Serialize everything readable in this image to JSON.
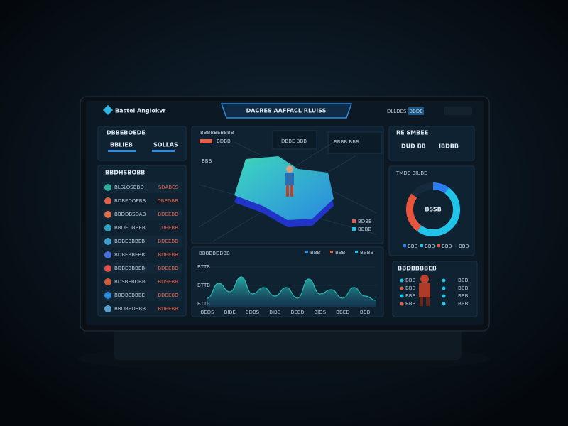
{
  "header": {
    "logo": "Bastel Anglokvr",
    "title": "DACRES AAFFACL RLUISS",
    "right": [
      "DLLDES",
      "BBDE"
    ]
  },
  "top_left": {
    "title": "DBBEBOEDE",
    "items": [
      "BBLIEB",
      "SOLLAS"
    ]
  },
  "list": {
    "title": "BBDHSBOBB",
    "rows": [
      [
        "BLSLOSBBD",
        "SDABES"
      ],
      [
        "BDBEDOEBB",
        "DBEDBB"
      ],
      [
        "BBDDBSDAB",
        "BDEEBB"
      ],
      [
        "BBDEDBBEB",
        "DEEBB"
      ],
      [
        "BDBEBBBEB",
        "BDEEBB"
      ],
      [
        "BDBEBBEBB",
        "BDEEBB"
      ],
      [
        "BDBEBBBEB",
        "BDEEBB"
      ],
      [
        "BDSBEBOBB",
        "BDSEBB"
      ],
      [
        "BBDBEBBBE",
        "BDEEBB"
      ],
      [
        "BBDBEDBBB",
        "BDEEBB"
      ]
    ]
  },
  "map_panel": {
    "title": "BBBBBEBBBB",
    "tags": [
      "BDBB",
      "BBB"
    ],
    "stats": [
      "DBBE BBB",
      "BBBB BBB"
    ],
    "legend": [
      "BDBB",
      "BBBB"
    ]
  },
  "top_right": {
    "title": "RE SMBEE",
    "items": [
      "DUD BB",
      "IBDBB"
    ]
  },
  "donut": {
    "title": "TMDE BIUBE",
    "center": "BSSB",
    "values": [
      10,
      50,
      25,
      15
    ],
    "colors": [
      "#2a7ef0",
      "#1fc4e8",
      "#e8553e",
      "#152a3c"
    ],
    "legend": [
      "BBB",
      "BBB",
      "BBB",
      "BBB"
    ]
  },
  "card": {
    "title": "BBDBBBBEB",
    "rows": [
      "BBB",
      "BBB",
      "BBB",
      "BBB"
    ]
  },
  "chart_data": {
    "type": "area",
    "title": "BBBBBDBBB",
    "legend": [
      "BBB",
      "BBB",
      "BBBB"
    ],
    "color": "#2bb7b0",
    "categories": [
      "BEDS",
      null,
      "BIBE",
      null,
      "BDBS",
      null,
      "BIBS",
      null,
      "BEBB",
      null,
      "BIDS",
      null,
      "BBEE",
      null,
      "BBB",
      null
    ],
    "values": [
      20,
      55,
      35,
      70,
      30,
      45,
      25,
      45,
      20,
      65,
      30,
      40,
      20,
      45,
      25,
      15
    ],
    "ylim": [
      0,
      100
    ],
    "y_labels": [
      "BTTB",
      "BTTB",
      "BTTB"
    ]
  }
}
